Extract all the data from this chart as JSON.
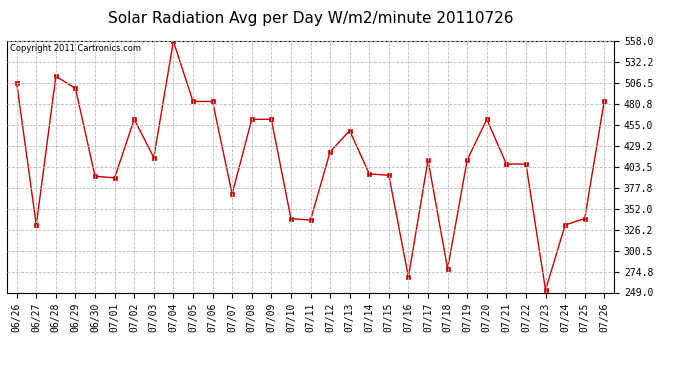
{
  "title": "Solar Radiation Avg per Day W/m2/minute 20110726",
  "copyright_text": "Copyright 2011 Cartronics.com",
  "x_labels": [
    "06/26",
    "06/27",
    "06/28",
    "06/29",
    "06/30",
    "07/01",
    "07/02",
    "07/03",
    "07/04",
    "07/05",
    "07/06",
    "07/07",
    "07/08",
    "07/09",
    "07/10",
    "07/11",
    "07/12",
    "07/13",
    "07/14",
    "07/15",
    "07/16",
    "07/17",
    "07/18",
    "07/19",
    "07/20",
    "07/21",
    "07/22",
    "07/23",
    "07/24",
    "07/25",
    "07/26"
  ],
  "y_values": [
    506.5,
    332.0,
    515.0,
    500.0,
    392.0,
    390.0,
    462.0,
    415.0,
    558.0,
    484.0,
    484.0,
    370.0,
    462.0,
    462.0,
    340.0,
    338.0,
    422.0,
    448.0,
    395.0,
    393.0,
    268.0,
    412.0,
    278.0,
    412.0,
    462.0,
    407.0,
    407.0,
    252.0,
    332.0,
    340.0,
    485.0
  ],
  "ylim_min": 249.0,
  "ylim_max": 558.0,
  "yticks": [
    249.0,
    274.8,
    300.5,
    326.2,
    352.0,
    377.8,
    403.5,
    429.2,
    455.0,
    480.8,
    506.5,
    532.2,
    558.0
  ],
  "ytick_labels": [
    "249.0",
    "274.8",
    "300.5",
    "326.2",
    "352.0",
    "377.8",
    "403.5",
    "429.2",
    "455.0",
    "480.8",
    "506.5",
    "532.2",
    "558.0"
  ],
  "line_color": "#cc0000",
  "marker": "s",
  "marker_size": 2.5,
  "bg_color": "#ffffff",
  "grid_color": "#bbbbbb",
  "title_fontsize": 11,
  "tick_fontsize": 7,
  "copyright_fontsize": 6
}
